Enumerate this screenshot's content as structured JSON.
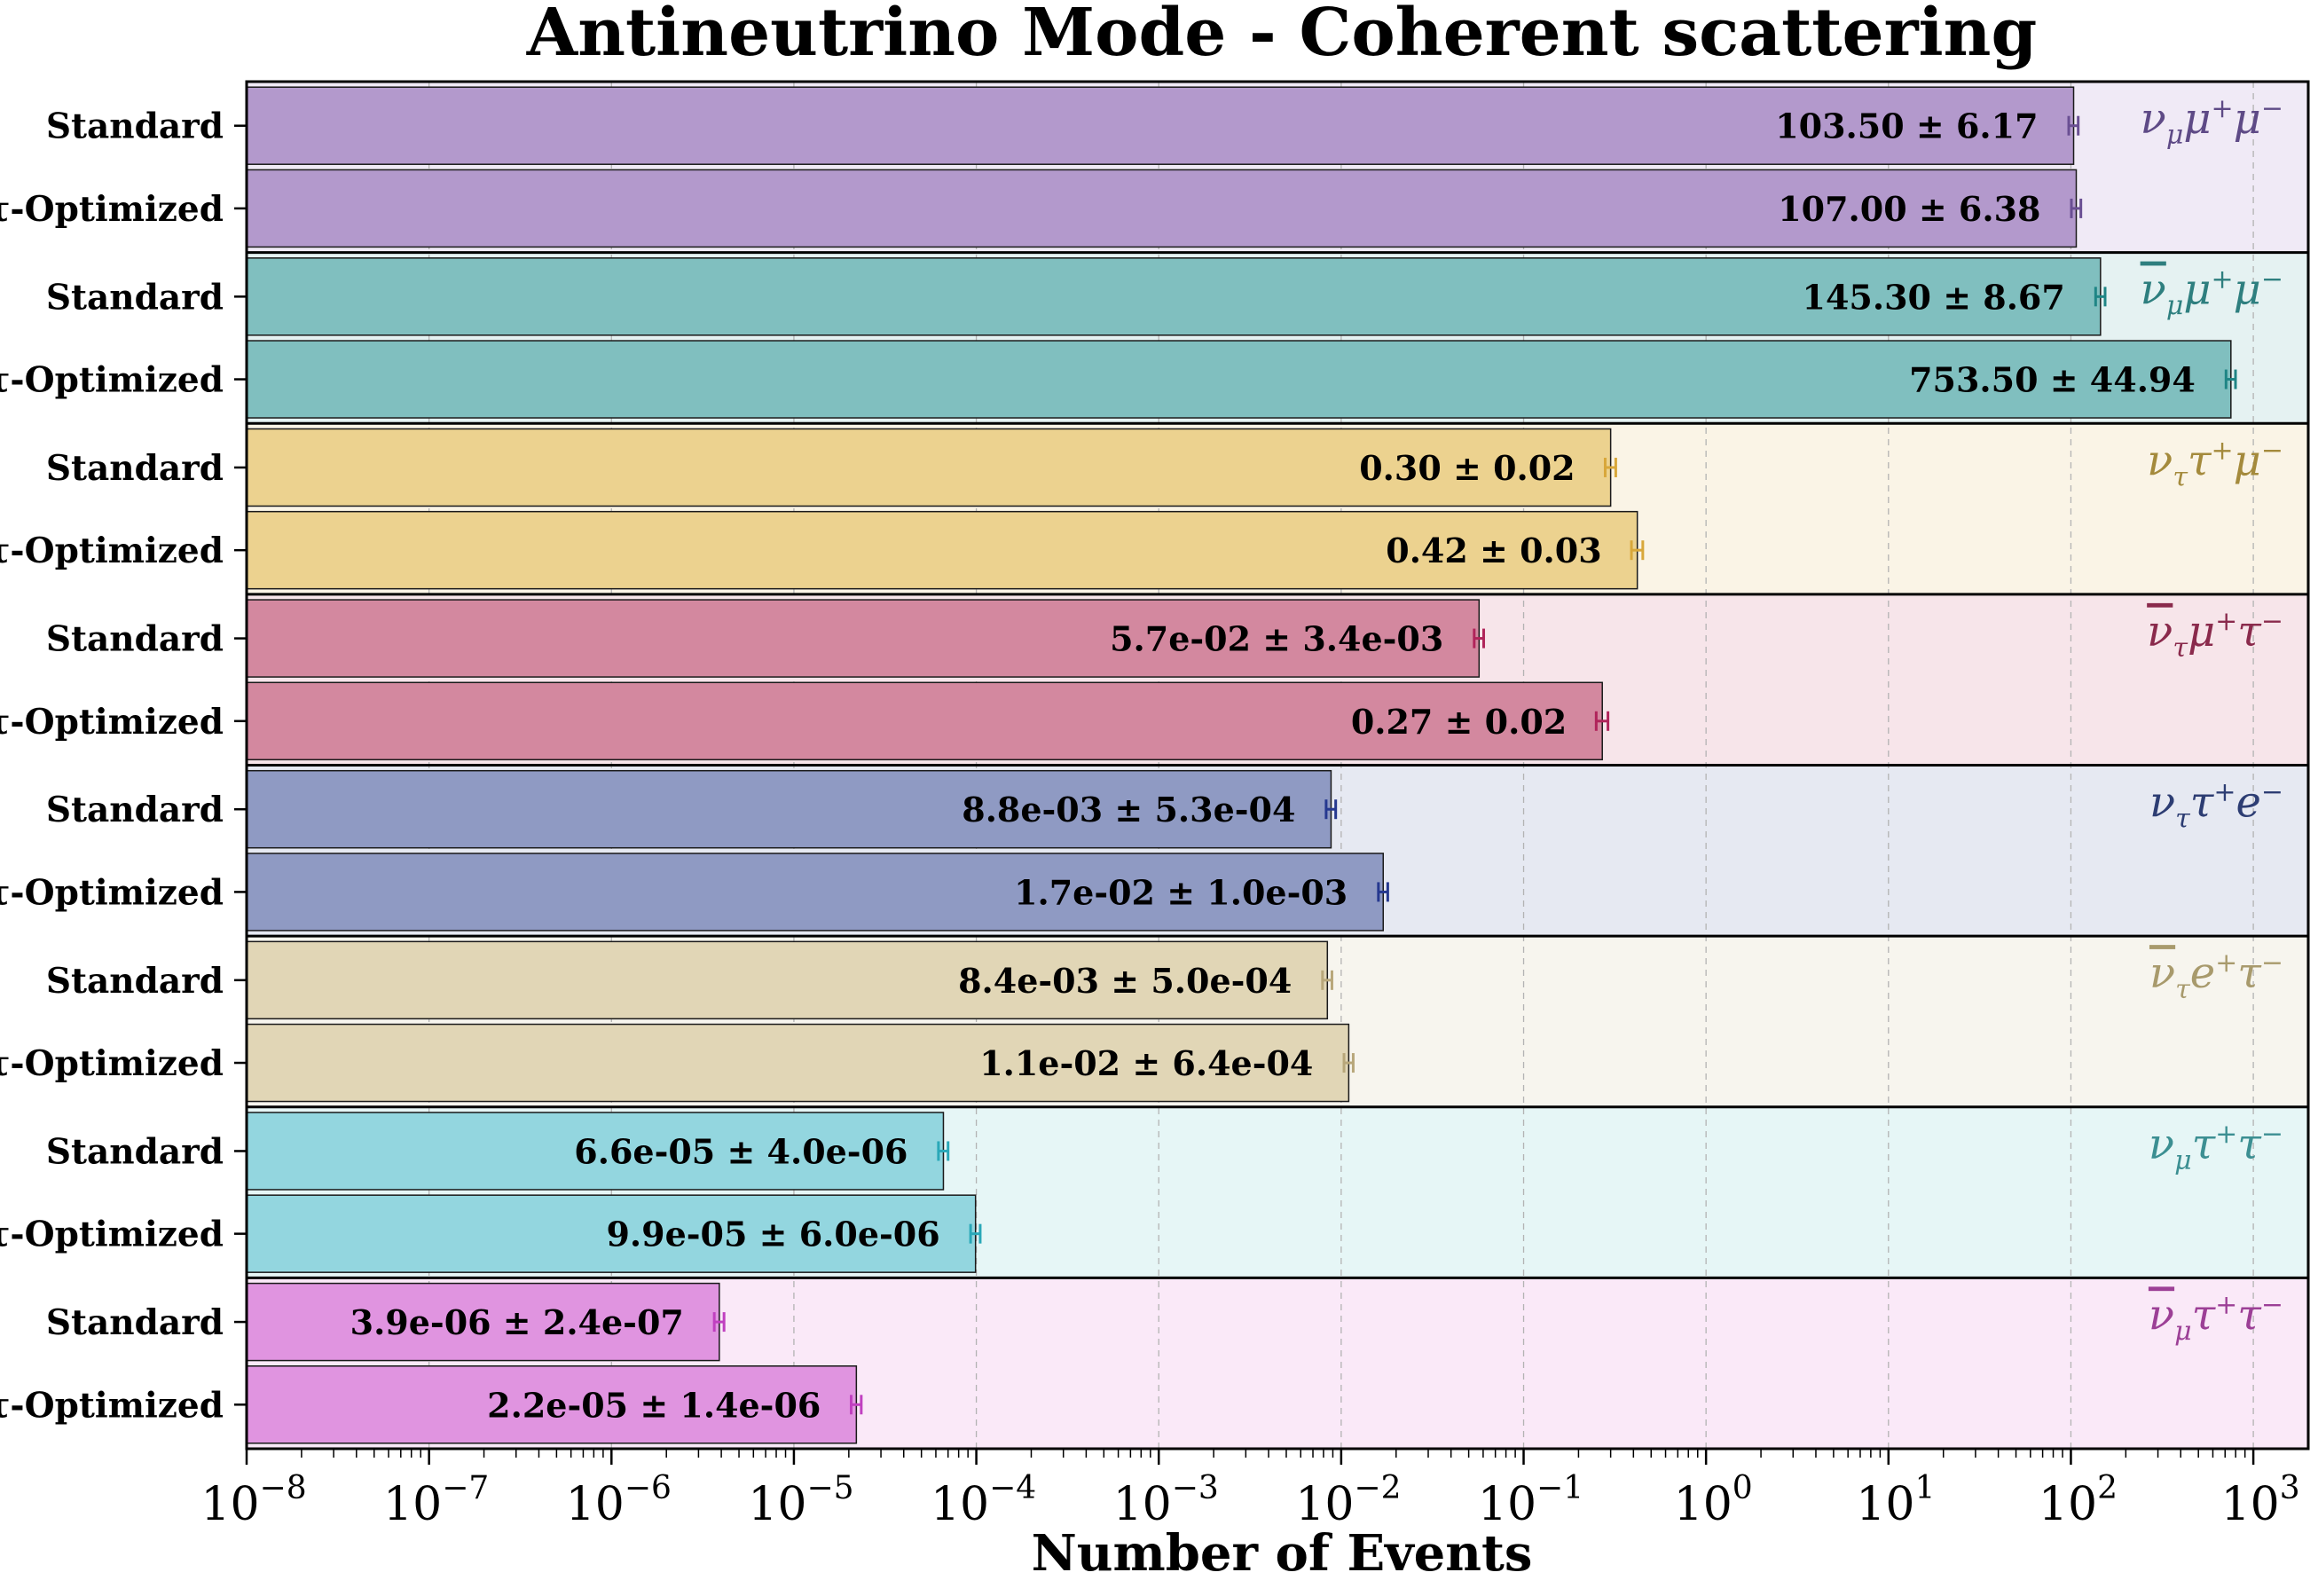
{
  "chart_data": {
    "type": "bar",
    "orientation": "horizontal",
    "title": "Antineutrino Mode - Coherent scattering",
    "xlabel": "Number of Events",
    "ylabel": "",
    "xscale": "log",
    "xlim": [
      1e-08,
      2000
    ],
    "x_ticks": [
      {
        "value": 1e-08,
        "base": "10",
        "exp": "−8"
      },
      {
        "value": 1e-07,
        "base": "10",
        "exp": "−7"
      },
      {
        "value": 1e-06,
        "base": "10",
        "exp": "−6"
      },
      {
        "value": 1e-05,
        "base": "10",
        "exp": "−5"
      },
      {
        "value": 0.0001,
        "base": "10",
        "exp": "−4"
      },
      {
        "value": 0.001,
        "base": "10",
        "exp": "−3"
      },
      {
        "value": 0.01,
        "base": "10",
        "exp": "−2"
      },
      {
        "value": 0.1,
        "base": "10",
        "exp": "−1"
      },
      {
        "value": 1,
        "base": "10",
        "exp": "0"
      },
      {
        "value": 10,
        "base": "10",
        "exp": "1"
      },
      {
        "value": 100,
        "base": "10",
        "exp": "2"
      },
      {
        "value": 1000,
        "base": "10",
        "exp": "3"
      }
    ],
    "grid": "vertical dashed",
    "bar_labels": [
      "Standard",
      "τ-Optimized"
    ],
    "channels": [
      {
        "name": {
          "main": "ν",
          "bar": false,
          "sub": "μ",
          "rest": [
            [
              "μ",
              "+"
            ],
            [
              "μ",
              "−"
            ]
          ]
        },
        "color": "#b399cc",
        "bg": "#f0eaf6",
        "label_color": "#5e4a86",
        "err_color": "#6a4f93",
        "bars": [
          {
            "value": 103.5,
            "error": 6.17,
            "label": "103.50 ± 6.17"
          },
          {
            "value": 107.0,
            "error": 6.38,
            "label": "107.00 ± 6.38"
          }
        ]
      },
      {
        "name": {
          "main": "ν",
          "bar": true,
          "sub": "μ",
          "rest": [
            [
              "μ",
              "+"
            ],
            [
              "μ",
              "−"
            ]
          ]
        },
        "color": "#80bfbf",
        "bg": "#e5f2f2",
        "label_color": "#2e7f7f",
        "err_color": "#1f8585",
        "bars": [
          {
            "value": 145.3,
            "error": 8.67,
            "label": "145.30 ± 8.67"
          },
          {
            "value": 753.5,
            "error": 44.94,
            "label": "753.50 ± 44.94"
          }
        ]
      },
      {
        "name": {
          "main": "ν",
          "bar": false,
          "sub": "τ",
          "rest": [
            [
              "τ",
              "+"
            ],
            [
              "μ",
              "−"
            ]
          ]
        },
        "color": "#ecd28f",
        "bg": "#faf4e6",
        "label_color": "#a48a3c",
        "err_color": "#d8a73a",
        "bars": [
          {
            "value": 0.3,
            "error": 0.02,
            "label": "0.30 ± 0.02"
          },
          {
            "value": 0.42,
            "error": 0.03,
            "label": "0.42 ± 0.03"
          }
        ]
      },
      {
        "name": {
          "main": "ν",
          "bar": true,
          "sub": "τ",
          "rest": [
            [
              "μ",
              "+"
            ],
            [
              "τ",
              "−"
            ]
          ]
        },
        "color": "#d3889f",
        "bg": "#f7e5ea",
        "label_color": "#8a2a4c",
        "err_color": "#b0245a",
        "bars": [
          {
            "value": 0.057,
            "error": 0.0034,
            "label": "5.7e-02 ± 3.4e-03"
          },
          {
            "value": 0.27,
            "error": 0.02,
            "label": "0.27 ± 0.02"
          }
        ]
      },
      {
        "name": {
          "main": "ν",
          "bar": false,
          "sub": "τ",
          "rest": [
            [
              "τ",
              "+"
            ],
            [
              "e",
              "−"
            ]
          ]
        },
        "color": "#8f9ac3",
        "bg": "#e6e9f2",
        "label_color": "#2d3d73",
        "err_color": "#25388f",
        "bars": [
          {
            "value": 0.0088,
            "error": 0.00053,
            "label": "8.8e-03 ± 5.3e-04"
          },
          {
            "value": 0.017,
            "error": 0.001,
            "label": "1.7e-02 ± 1.0e-03"
          }
        ]
      },
      {
        "name": {
          "main": "ν",
          "bar": true,
          "sub": "τ",
          "rest": [
            [
              "e",
              "+"
            ],
            [
              "τ",
              "−"
            ]
          ]
        },
        "color": "#e1d6b6",
        "bg": "#f7f5ee",
        "label_color": "#a89a6c",
        "err_color": "#b8a77a",
        "bars": [
          {
            "value": 0.0084,
            "error": 0.0005,
            "label": "8.4e-03 ± 5.0e-04"
          },
          {
            "value": 0.011,
            "error": 0.00064,
            "label": "1.1e-02 ± 6.4e-04"
          }
        ]
      },
      {
        "name": {
          "main": "ν",
          "bar": false,
          "sub": "μ",
          "rest": [
            [
              "τ",
              "+"
            ],
            [
              "τ",
              "−"
            ]
          ]
        },
        "color": "#93d6df",
        "bg": "#e6f6f6",
        "label_color": "#3c8f92",
        "err_color": "#2aa8b8",
        "bars": [
          {
            "value": 6.6e-05,
            "error": 4e-06,
            "label": "6.6e-05 ± 4.0e-06"
          },
          {
            "value": 9.9e-05,
            "error": 6e-06,
            "label": "9.9e-05 ± 6.0e-06"
          }
        ]
      },
      {
        "name": {
          "main": "ν",
          "bar": true,
          "sub": "μ",
          "rest": [
            [
              "τ",
              "+"
            ],
            [
              "τ",
              "−"
            ]
          ]
        },
        "color": "#e094e0",
        "bg": "#fae9f8",
        "label_color": "#9c3f96",
        "err_color": "#c040c0",
        "bars": [
          {
            "value": 3.9e-06,
            "error": 2.4e-07,
            "label": "3.9e-06 ± 2.4e-07"
          },
          {
            "value": 2.2e-05,
            "error": 1.4e-06,
            "label": "2.2e-05 ± 1.4e-06"
          }
        ]
      }
    ]
  }
}
